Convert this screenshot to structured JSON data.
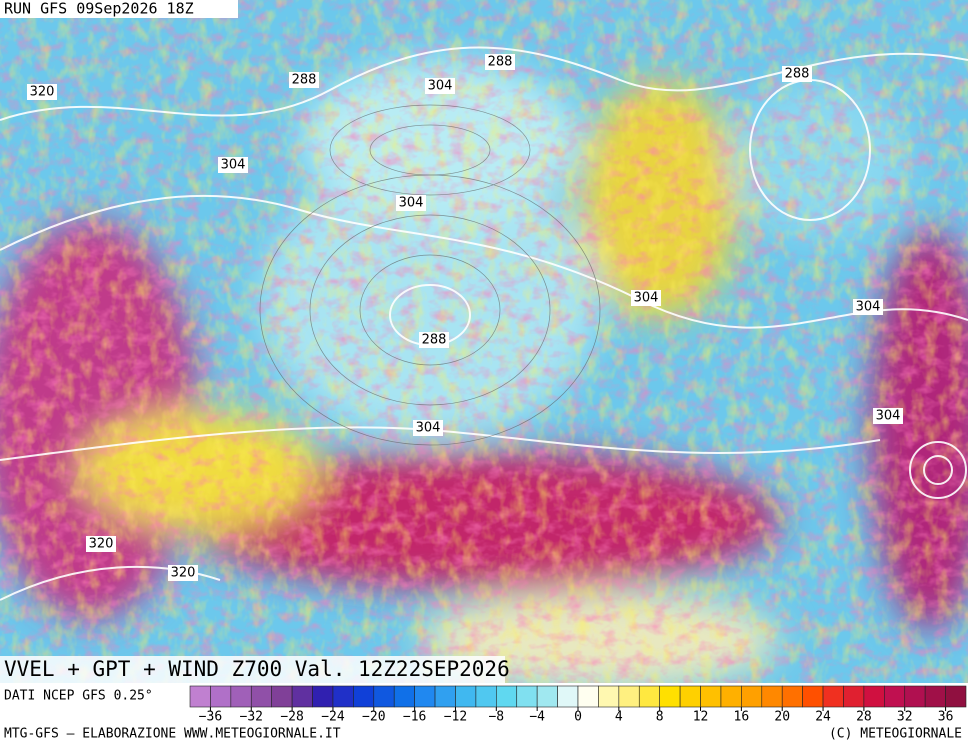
{
  "header": {
    "run": "RUN GFS 09Sep2026 18Z"
  },
  "map": {
    "contour_labels": [
      320,
      288,
      304,
      288,
      288,
      304,
      304,
      304,
      304,
      288,
      304,
      304,
      320,
      320
    ]
  },
  "footer": {
    "title": "VVEL + GPT + WIND Z700 Val. 12Z22SEP2026",
    "source": "DATI NCEP GFS 0.25°",
    "credit": "MTG-GFS – ELABORAZIONE WWW.METEOGIORNALE.IT",
    "copyright": "(C) METEOGIORNALE"
  },
  "colorbar": {
    "lim": [
      -38,
      38
    ],
    "ticks": [
      -36,
      -32,
      -28,
      -24,
      -20,
      -16,
      -12,
      -8,
      -4,
      0,
      4,
      8,
      12,
      16,
      20,
      24,
      28,
      32,
      36
    ],
    "ticks_labels": [
      {
        "value": -36,
        "label": "−36"
      },
      {
        "value": -32,
        "label": "−32"
      },
      {
        "value": -28,
        "label": "−28"
      },
      {
        "value": -24,
        "label": "−24"
      },
      {
        "value": -20,
        "label": "−20"
      },
      {
        "value": -16,
        "label": "−16"
      },
      {
        "value": -12,
        "label": "−12"
      },
      {
        "value": -8,
        "label": "−8"
      },
      {
        "value": -4,
        "label": "−4"
      }
    ],
    "colors": [
      "#c080d0",
      "#b070c8",
      "#a060b8",
      "#9050a8",
      "#804098",
      "#6030a0",
      "#3020b0",
      "#2030c8",
      "#1040d8",
      "#1058e0",
      "#1070e8",
      "#2088f0",
      "#30a0f0",
      "#40b8f0",
      "#50c8f0",
      "#60d8f0",
      "#80e0f0",
      "#a0e8f0",
      "#e0f8f8",
      "#fffff0",
      "#fff8b0",
      "#fff080",
      "#ffe840",
      "#ffe000",
      "#ffd000",
      "#ffc000",
      "#ffb000",
      "#ffa000",
      "#ff8800",
      "#ff7000",
      "#ff5000",
      "#f03020",
      "#e02030",
      "#d01040",
      "#c01050",
      "#b01050",
      "#a01048",
      "#901040"
    ]
  }
}
